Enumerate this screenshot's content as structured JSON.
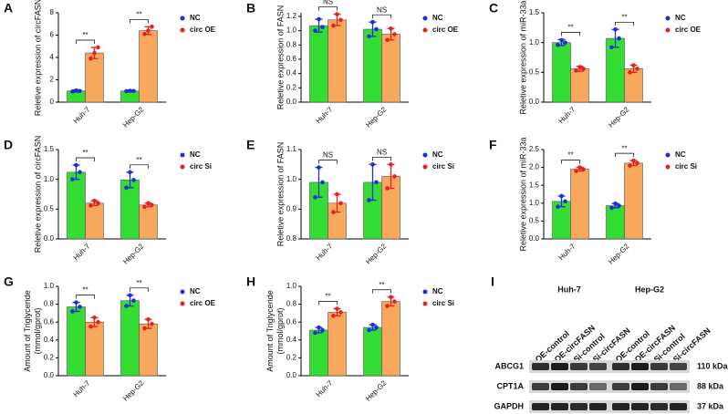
{
  "chart_data": [
    {
      "type": "bar",
      "panel": "A",
      "ylabel": [
        "Reletive expression of circFASN"
      ],
      "categories": [
        "Huh-7",
        "Hep-G2"
      ],
      "ylim": [
        0,
        8
      ],
      "yticks": [
        0,
        2,
        4,
        6,
        8
      ],
      "significance": [
        "**",
        "**"
      ],
      "series": [
        {
          "name": "NC",
          "color": "#33dd33",
          "point_color": "#1a2fd6",
          "values": [
            1.0,
            1.0
          ],
          "errors": [
            0.1,
            0.08
          ],
          "points": [
            [
              0.95,
              1.05,
              1.0
            ],
            [
              0.98,
              1.02,
              1.0
            ]
          ]
        },
        {
          "name": "circ OE",
          "color": "#f7a85c",
          "point_color": "#e52222",
          "values": [
            4.4,
            6.4
          ],
          "errors": [
            0.5,
            0.35
          ],
          "points": [
            [
              3.9,
              4.4,
              4.9
            ],
            [
              6.1,
              6.4,
              6.75
            ]
          ]
        }
      ]
    },
    {
      "type": "bar",
      "panel": "B",
      "ylabel": [
        "Reletive expression of FASN"
      ],
      "categories": [
        "Huh-7",
        "Hep-G2"
      ],
      "ylim": [
        0,
        1.25
      ],
      "yticks": [
        {
          "value": 0,
          "label": "0.0"
        },
        0.2,
        0.4,
        0.6,
        0.8,
        {
          "value": 1,
          "label": "1.0"
        },
        1.2
      ],
      "significance": [
        "NS",
        "NS"
      ],
      "series": [
        {
          "name": "NC",
          "color": "#33dd33",
          "point_color": "#1a2fd6",
          "values": [
            1.07,
            1.02
          ],
          "errors": [
            0.09,
            0.1
          ],
          "points": [
            [
              1.0,
              1.16,
              1.05
            ],
            [
              0.92,
              1.12,
              1.02
            ]
          ]
        },
        {
          "name": "circ OE",
          "color": "#f7a85c",
          "point_color": "#e52222",
          "values": [
            1.15,
            0.95
          ],
          "errors": [
            0.08,
            0.08
          ],
          "points": [
            [
              1.07,
              1.23,
              1.15
            ],
            [
              0.87,
              1.03,
              0.95
            ]
          ]
        }
      ]
    },
    {
      "type": "bar",
      "panel": "C",
      "ylabel": [
        "Reletive expression of miR-33a"
      ],
      "categories": [
        "Huh-7",
        "Hep-G2"
      ],
      "ylim": [
        0,
        1.5
      ],
      "yticks": [
        {
          "value": 0,
          "label": "0.0"
        },
        0.5,
        {
          "value": 1,
          "label": "1.0"
        },
        1.5
      ],
      "significance": [
        "**",
        "**"
      ],
      "series": [
        {
          "name": "NC",
          "color": "#33dd33",
          "point_color": "#1a2fd6",
          "values": [
            1.0,
            1.07
          ],
          "errors": [
            0.05,
            0.15
          ],
          "points": [
            [
              0.96,
              1.04,
              1.0
            ],
            [
              0.92,
              1.22,
              1.07
            ]
          ]
        },
        {
          "name": "circ OE",
          "color": "#f7a85c",
          "point_color": "#e52222",
          "values": [
            0.56,
            0.56
          ],
          "errors": [
            0.04,
            0.06
          ],
          "points": [
            [
              0.53,
              0.59,
              0.56
            ],
            [
              0.5,
              0.62,
              0.56
            ]
          ]
        }
      ]
    },
    {
      "type": "bar",
      "panel": "D",
      "ylabel": [
        "Reletive expression of circFASN"
      ],
      "categories": [
        "Huh-7",
        "Hep-G2"
      ],
      "ylim": [
        0,
        1.5
      ],
      "yticks": [
        {
          "value": 0,
          "label": "0.0"
        },
        0.5,
        {
          "value": 1,
          "label": "1.0"
        },
        1.5
      ],
      "significance": [
        "**",
        "**"
      ],
      "series": [
        {
          "name": "NC",
          "color": "#33dd33",
          "point_color": "#1a2fd6",
          "values": [
            1.12,
            0.99
          ],
          "errors": [
            0.12,
            0.13
          ],
          "points": [
            [
              1.0,
              1.24,
              1.12
            ],
            [
              0.86,
              1.12,
              0.99
            ]
          ]
        },
        {
          "name": "circ Si",
          "color": "#f7a85c",
          "point_color": "#e52222",
          "values": [
            0.6,
            0.57
          ],
          "errors": [
            0.04,
            0.03
          ],
          "points": [
            [
              0.56,
              0.64,
              0.6
            ],
            [
              0.54,
              0.6,
              0.57
            ]
          ]
        }
      ]
    },
    {
      "type": "bar",
      "panel": "E",
      "ylabel": [
        "Reletive expression of FASN"
      ],
      "categories": [
        "Huh-7",
        "Hep-G2"
      ],
      "ylim": [
        0.8,
        1.1
      ],
      "yticks": [
        0.8,
        0.9,
        {
          "value": 1,
          "label": "1.0"
        },
        1.1
      ],
      "significance": [
        "NS",
        "NS"
      ],
      "series": [
        {
          "name": "NC",
          "color": "#33dd33",
          "point_color": "#1a2fd6",
          "values": [
            0.99,
            0.99
          ],
          "errors": [
            0.05,
            0.06
          ],
          "points": [
            [
              0.94,
              1.04,
              0.99
            ],
            [
              0.93,
              1.05,
              0.99
            ]
          ]
        },
        {
          "name": "circ Si",
          "color": "#f7a85c",
          "point_color": "#e52222",
          "values": [
            0.92,
            1.01
          ],
          "errors": [
            0.03,
            0.04
          ],
          "points": [
            [
              0.89,
              0.95,
              0.92
            ],
            [
              0.97,
              1.05,
              1.01
            ]
          ]
        }
      ]
    },
    {
      "type": "bar",
      "panel": "F",
      "ylabel": [
        "Reletive expression of miR-33a"
      ],
      "categories": [
        "Huh-7",
        "Hep-G2"
      ],
      "ylim": [
        0,
        2.5
      ],
      "yticks": [
        {
          "value": 0,
          "label": "0.0"
        },
        0.5,
        {
          "value": 1,
          "label": "1.0"
        },
        1.5,
        {
          "value": 2,
          "label": "2.0"
        },
        2.5
      ],
      "significance": [
        "**",
        "**"
      ],
      "series": [
        {
          "name": "NC",
          "color": "#33dd33",
          "point_color": "#1a2fd6",
          "values": [
            1.05,
            0.93
          ],
          "errors": [
            0.15,
            0.06
          ],
          "points": [
            [
              0.9,
              1.2,
              1.05
            ],
            [
              0.87,
              0.99,
              0.93
            ]
          ]
        },
        {
          "name": "circ Si",
          "color": "#f7a85c",
          "point_color": "#e52222",
          "values": [
            1.95,
            2.12
          ],
          "errors": [
            0.05,
            0.07
          ],
          "points": [
            [
              1.9,
              2.0,
              1.95
            ],
            [
              2.05,
              2.19,
              2.12
            ]
          ]
        }
      ]
    },
    {
      "type": "bar",
      "panel": "G",
      "ylabel": [
        "Amount of Triglyceride",
        "(mmol/gprot)"
      ],
      "categories": [
        "Huh-7",
        "Hep-G2"
      ],
      "ylim": [
        0,
        1
      ],
      "yticks": [
        {
          "value": 0,
          "label": "0.0"
        },
        0.2,
        0.4,
        0.6,
        0.8,
        {
          "value": 1,
          "label": "1.0"
        }
      ],
      "significance": [
        "**",
        "**"
      ],
      "series": [
        {
          "name": "NC",
          "color": "#33dd33",
          "point_color": "#1a2fd6",
          "values": [
            0.77,
            0.84
          ],
          "errors": [
            0.05,
            0.06
          ],
          "points": [
            [
              0.72,
              0.82,
              0.77
            ],
            [
              0.78,
              0.9,
              0.84
            ]
          ]
        },
        {
          "name": "circ OE",
          "color": "#f7a85c",
          "point_color": "#e52222",
          "values": [
            0.6,
            0.58
          ],
          "errors": [
            0.05,
            0.05
          ],
          "points": [
            [
              0.55,
              0.65,
              0.6
            ],
            [
              0.53,
              0.63,
              0.58
            ]
          ]
        }
      ]
    },
    {
      "type": "bar",
      "panel": "H",
      "ylabel": [
        "Amount of Triglyceride",
        "(mmol/gprot)"
      ],
      "categories": [
        "Huh-7",
        "Hep-G2"
      ],
      "ylim": [
        0,
        1
      ],
      "yticks": [
        {
          "value": 0,
          "label": "0.0"
        },
        0.2,
        0.4,
        0.6,
        0.8,
        {
          "value": 1,
          "label": "1.0"
        }
      ],
      "significance": [
        "**",
        "**"
      ],
      "series": [
        {
          "name": "NC",
          "color": "#33dd33",
          "point_color": "#1a2fd6",
          "values": [
            0.51,
            0.54
          ],
          "errors": [
            0.03,
            0.03
          ],
          "points": [
            [
              0.48,
              0.54,
              0.51
            ],
            [
              0.51,
              0.57,
              0.54
            ]
          ]
        },
        {
          "name": "circ Si",
          "color": "#f7a85c",
          "point_color": "#e52222",
          "values": [
            0.71,
            0.83
          ],
          "errors": [
            0.04,
            0.05
          ],
          "points": [
            [
              0.67,
              0.75,
              0.71
            ],
            [
              0.78,
              0.88,
              0.83
            ]
          ]
        }
      ]
    }
  ],
  "blot": {
    "panel": "I",
    "groups": [
      "Huh-7",
      "Hep-G2"
    ],
    "lanes": [
      "OE-control",
      "OE-circFASN",
      "Si-control",
      "Si-circFASN"
    ],
    "rows": [
      {
        "label": "ABCG1",
        "size": "110 kDa"
      },
      {
        "label": "CPT1A",
        "size": "88 kDa"
      },
      {
        "label": "GAPDH",
        "size": "37 kDa"
      }
    ]
  }
}
